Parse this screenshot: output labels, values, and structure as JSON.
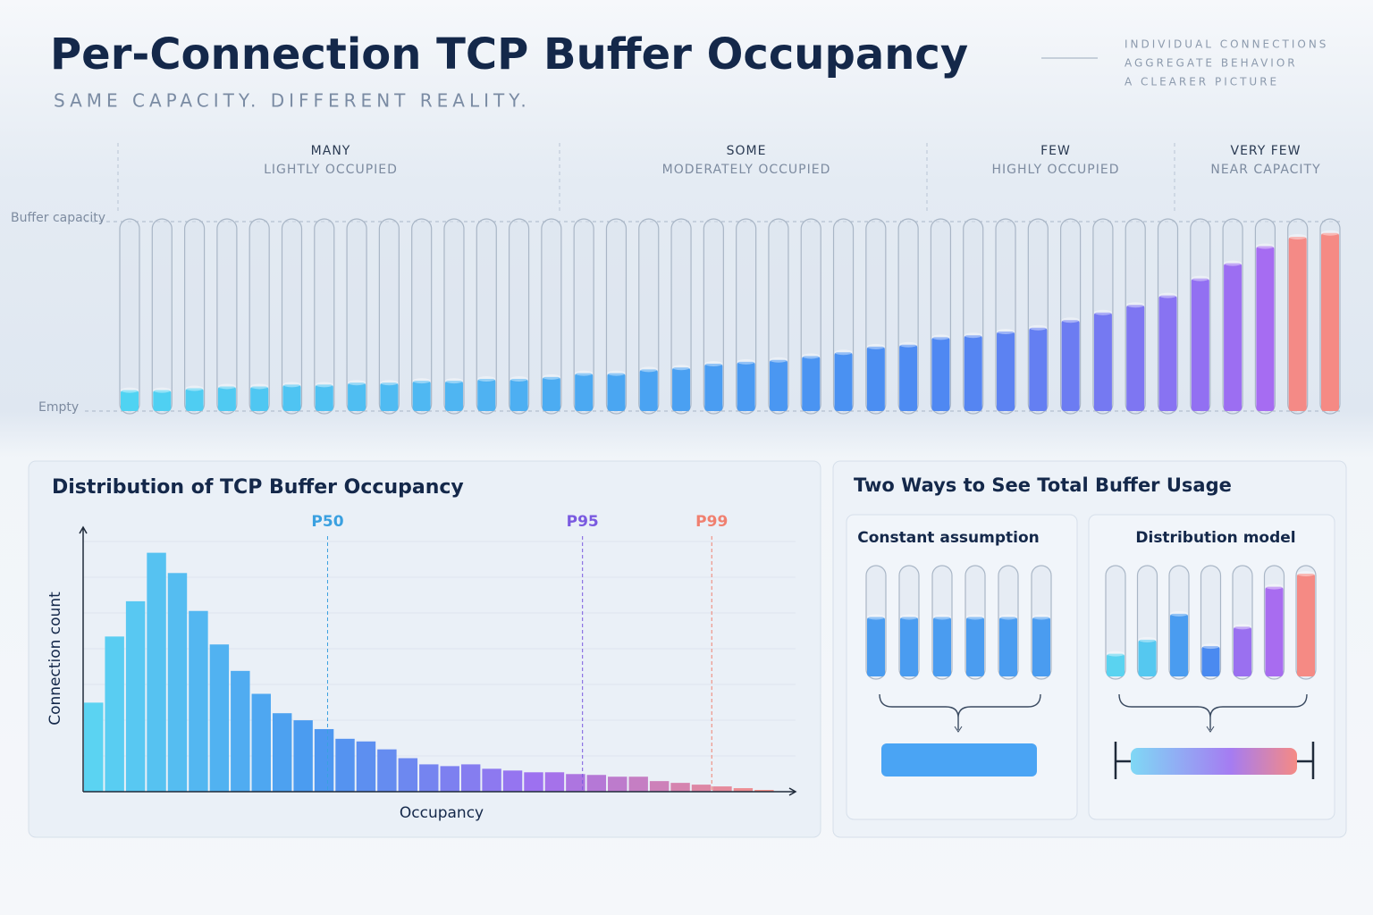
{
  "header": {
    "title": "Per-Connection TCP Buffer Occupancy",
    "subtitle": "SAME CAPACITY. DIFFERENT REALITY.",
    "notes": [
      "INDIVIDUAL CONNECTIONS",
      "AGGREGATE BEHAVIOR",
      "A CLEARER PICTURE"
    ]
  },
  "panel_title": "Two Ways to See Total Buffer Usage",
  "chart_data": [
    {
      "type": "tubes",
      "ylim": [
        0,
        100
      ],
      "yticks": [
        {
          "value": 0,
          "label": "Empty"
        },
        {
          "value": 100,
          "label": "Buffer capacity"
        }
      ],
      "groups": [
        {
          "label": "MANY",
          "sublabel": "LIGHTLY OCCUPIED"
        },
        {
          "label": "SOME",
          "sublabel": "MODERATELY OCCUPIED"
        },
        {
          "label": "FEW",
          "sublabel": "HIGHLY OCCUPIED"
        },
        {
          "label": "VERY FEW",
          "sublabel": "NEAR CAPACITY"
        }
      ],
      "values": [
        11,
        11,
        12,
        13,
        13,
        14,
        14,
        15,
        15,
        16,
        16,
        17,
        17,
        18,
        20,
        20,
        22,
        23,
        25,
        26,
        27,
        29,
        31,
        34,
        35,
        39,
        40,
        42,
        44,
        48,
        52,
        56,
        61,
        70,
        78,
        87,
        92,
        94
      ],
      "colors": [
        "#4fd3f2",
        "#4fd0f2",
        "#4fcdf2",
        "#4fcaf2",
        "#4fc7f2",
        "#4fc4f2",
        "#4fc1f2",
        "#4fbef2",
        "#4fbbf2",
        "#4fb8f2",
        "#4fb5f2",
        "#4fb2f2",
        "#4dafF2",
        "#4cacf2",
        "#4ba9f2",
        "#4aa6f2",
        "#4aa3f2",
        "#4aa0f2",
        "#4a9df2",
        "#4a9af2",
        "#4a97f2",
        "#4a94f2",
        "#4a91f2",
        "#4b8ef2",
        "#4d8bf2",
        "#4f88f2",
        "#5585f2",
        "#5c82f2",
        "#647ff2",
        "#6c7cf2",
        "#7579f2",
        "#7e76f2",
        "#8873f2",
        "#9270f2",
        "#9c6ef2",
        "#a66cf2",
        "#f48a86",
        "#f58a84"
      ]
    },
    {
      "type": "histogram",
      "title": "Distribution of TCP Buffer Occupancy",
      "xlabel": "Occupancy",
      "ylabel": "Connection count",
      "bins": [
        0,
        3,
        6,
        9,
        12,
        15,
        18,
        21,
        24,
        27,
        30,
        33,
        36,
        39,
        42,
        45,
        48,
        51,
        54,
        57,
        60,
        63,
        66,
        69,
        72,
        75,
        78,
        81,
        84,
        87,
        90,
        93,
        96,
        99
      ],
      "values": [
        101,
        176,
        216,
        271,
        248,
        205,
        167,
        137,
        111,
        89,
        81,
        71,
        60,
        57,
        48,
        38,
        31,
        29,
        31,
        26,
        24,
        22,
        22,
        20,
        19,
        17,
        17,
        12,
        10,
        8,
        6,
        4,
        2
      ],
      "xlim": [
        0,
        102
      ],
      "ylim": [
        0,
        300
      ],
      "color_stops": [
        "#5bd3f2",
        "#4a98f0",
        "#a070f0",
        "#f59088"
      ],
      "markers": [
        {
          "value": 35,
          "label": "P50",
          "color": "#3aa0e0"
        },
        {
          "value": 71.5,
          "label": "P95",
          "color": "#7a5ae0"
        },
        {
          "value": 90,
          "label": "P99",
          "color": "#f08070"
        }
      ]
    },
    {
      "type": "tubes",
      "title": "Constant assumption",
      "ylim": [
        0,
        100
      ],
      "values": [
        55,
        55,
        55,
        55,
        55,
        55
      ],
      "color": "#4a9cf0"
    },
    {
      "type": "tubes",
      "title": "Distribution model",
      "ylim": [
        0,
        100
      ],
      "values": [
        21,
        34,
        58,
        28,
        46,
        83,
        95
      ],
      "colors": [
        "#5ad3f0",
        "#55c8f0",
        "#4a9cf0",
        "#4a8af0",
        "#9a70f0",
        "#a86cf0",
        "#f58a84"
      ]
    }
  ]
}
